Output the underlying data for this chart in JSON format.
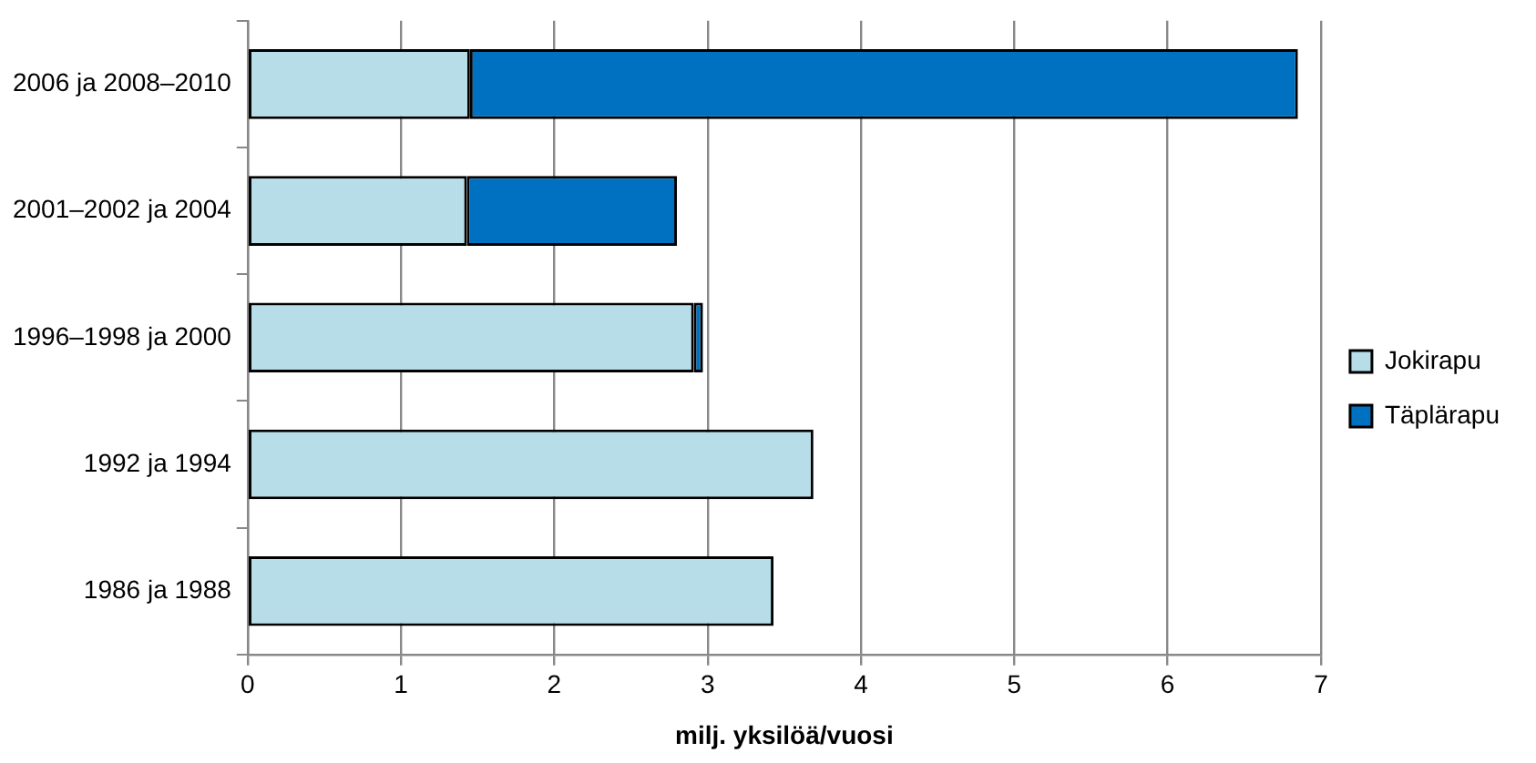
{
  "chart_data": {
    "type": "bar",
    "orientation": "horizontal",
    "stacked": true,
    "xlabel": "milj. yksilöä/vuosi",
    "categories": [
      "2006 ja 2008–2010",
      "2001–2002 ja 2004",
      "1996–1998 ja 2000",
      "1992 ja 1994",
      "1986 ja 1988"
    ],
    "series": [
      {
        "name": "Jokirapu",
        "color": "#b7dde8",
        "values": [
          1.45,
          1.43,
          2.91,
          3.69,
          3.43
        ]
      },
      {
        "name": "Täplärapu",
        "color": "#0070c0",
        "values": [
          5.4,
          1.37,
          0.06,
          null,
          null
        ]
      }
    ],
    "xlim": [
      0,
      7
    ],
    "xticks": [
      0,
      1,
      2,
      3,
      4,
      5,
      6,
      7
    ],
    "grid": "x",
    "legend": "right"
  }
}
